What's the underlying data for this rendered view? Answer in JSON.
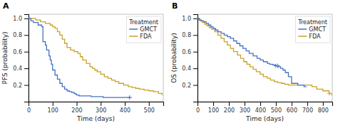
{
  "chart_data": [
    {
      "type": "step",
      "title": "A",
      "x_label": "Time (days)",
      "y_label": "PFS (probability)",
      "xlim": [
        0,
        560
      ],
      "ylim": [
        0,
        1.05
      ],
      "xticks": [
        0,
        100,
        200,
        300,
        400,
        500
      ],
      "yticks": [
        0.2,
        0.4,
        0.6,
        0.8,
        {
          "value": 1.0,
          "label": "1.0"
        }
      ],
      "legend": "upper right",
      "legend_title": "Treatment",
      "grid": false,
      "series": [
        {
          "name": "GMCT",
          "color": "#4472C4",
          "x": [
            0,
            10,
            20,
            40,
            55,
            60,
            70,
            75,
            85,
            90,
            95,
            100,
            110,
            120,
            130,
            140,
            150,
            160,
            170,
            180,
            190,
            195,
            200,
            210,
            220,
            260,
            290,
            310,
            330,
            360,
            390,
            420,
            425
          ],
          "values": [
            1.0,
            0.97,
            0.95,
            0.92,
            0.9,
            0.72,
            0.68,
            0.62,
            0.55,
            0.5,
            0.45,
            0.38,
            0.32,
            0.27,
            0.22,
            0.18,
            0.15,
            0.13,
            0.12,
            0.11,
            0.1,
            0.09,
            0.08,
            0.07,
            0.07,
            0.06,
            0.06,
            0.05,
            0.05,
            0.05,
            0.05,
            0.05,
            0.05
          ],
          "censor_x": [
            420
          ],
          "censor_y": [
            0.05
          ]
        },
        {
          "name": "FDA",
          "color": "#C9A227",
          "x": [
            0,
            15,
            30,
            50,
            70,
            90,
            100,
            110,
            120,
            130,
            140,
            150,
            160,
            175,
            190,
            205,
            215,
            225,
            240,
            255,
            265,
            275,
            285,
            300,
            315,
            330,
            345,
            360,
            375,
            395,
            415,
            430,
            445,
            460,
            480,
            500,
            520,
            540,
            555
          ],
          "values": [
            1.0,
            1.0,
            0.98,
            0.96,
            0.94,
            0.92,
            0.9,
            0.88,
            0.84,
            0.8,
            0.75,
            0.7,
            0.65,
            0.62,
            0.6,
            0.58,
            0.54,
            0.5,
            0.46,
            0.42,
            0.4,
            0.38,
            0.36,
            0.33,
            0.3,
            0.28,
            0.26,
            0.24,
            0.22,
            0.2,
            0.18,
            0.17,
            0.16,
            0.15,
            0.14,
            0.13,
            0.12,
            0.1,
            0.08
          ]
        }
      ]
    },
    {
      "type": "step",
      "title": "B",
      "x_label": "Time (days)",
      "y_label": "OS (probability)",
      "xlim": [
        0,
        860
      ],
      "ylim": [
        0,
        1.05
      ],
      "xticks": [
        0,
        100,
        200,
        300,
        400,
        500,
        600,
        700,
        800
      ],
      "yticks": [
        0.2,
        0.4,
        0.6,
        0.8,
        {
          "value": 1.0,
          "label": "1.0"
        }
      ],
      "legend": "upper right",
      "legend_title": "Treatment",
      "grid": false,
      "series": [
        {
          "name": "GMCT",
          "color": "#4472C4",
          "x": [
            0,
            10,
            25,
            40,
            55,
            70,
            85,
            100,
            115,
            130,
            150,
            170,
            190,
            210,
            230,
            250,
            270,
            290,
            310,
            330,
            355,
            380,
            400,
            420,
            445,
            460,
            480,
            500,
            515,
            530,
            545,
            560,
            580,
            600,
            640,
            680,
            695
          ],
          "values": [
            1.0,
            0.98,
            0.97,
            0.96,
            0.94,
            0.92,
            0.9,
            0.88,
            0.86,
            0.84,
            0.82,
            0.8,
            0.78,
            0.76,
            0.73,
            0.7,
            0.67,
            0.64,
            0.61,
            0.58,
            0.55,
            0.52,
            0.5,
            0.48,
            0.46,
            0.45,
            0.44,
            0.43,
            0.42,
            0.4,
            0.38,
            0.35,
            0.3,
            0.22,
            0.2,
            0.18,
            0.18
          ],
          "censor_x": [
            500,
            512
          ],
          "censor_y": [
            0.43,
            0.43
          ]
        },
        {
          "name": "FDA",
          "color": "#C9A227",
          "x": [
            0,
            15,
            30,
            45,
            60,
            75,
            90,
            110,
            130,
            150,
            170,
            190,
            210,
            230,
            255,
            275,
            295,
            315,
            335,
            355,
            375,
            400,
            420,
            445,
            465,
            490,
            510,
            535,
            555,
            580,
            600,
            630,
            660,
            700,
            730,
            760,
            800,
            840,
            855
          ],
          "values": [
            1.0,
            0.97,
            0.95,
            0.93,
            0.91,
            0.89,
            0.87,
            0.84,
            0.8,
            0.76,
            0.72,
            0.68,
            0.64,
            0.6,
            0.56,
            0.52,
            0.48,
            0.45,
            0.42,
            0.39,
            0.36,
            0.33,
            0.3,
            0.28,
            0.26,
            0.24,
            0.23,
            0.22,
            0.21,
            0.2,
            0.2,
            0.2,
            0.2,
            0.2,
            0.18,
            0.15,
            0.13,
            0.1,
            0.08
          ],
          "censor_x": [
            840
          ],
          "censor_y": [
            0.1
          ]
        }
      ]
    }
  ]
}
